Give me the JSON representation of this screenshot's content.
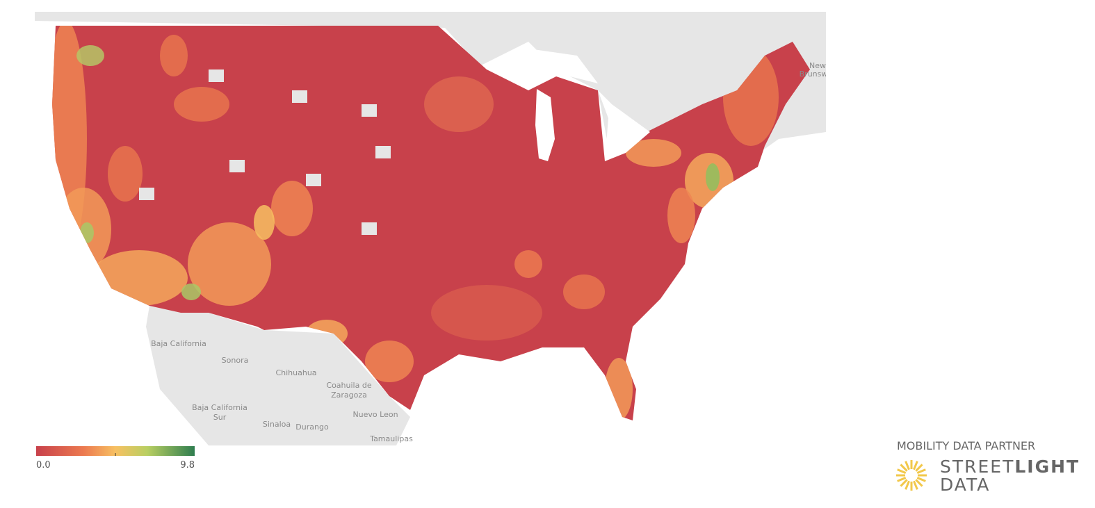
{
  "map": {
    "labels": [
      "Baja California",
      "Sonora",
      "Chihuahua",
      "Coahuila de",
      "Zaragoza",
      "Baja California",
      "Sur",
      "Nuevo Leon",
      "Sinaloa",
      "Durango",
      "Tamaulipas",
      "New",
      "Brunsw"
    ]
  },
  "legend": {
    "min_label": "0.0",
    "max_label": "9.8"
  },
  "logo": {
    "tagline": "MOBILITY DATA PARTNER",
    "word_light": "STREET",
    "word_bold": "LIGHT",
    "word_second": "DATA"
  }
}
